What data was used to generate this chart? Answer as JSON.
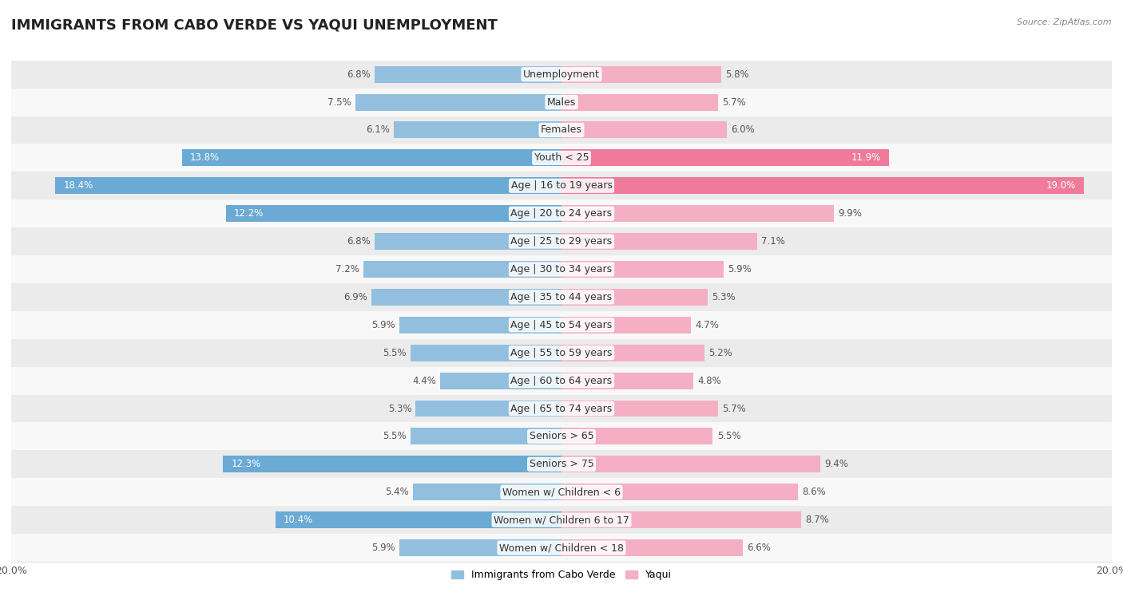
{
  "title": "IMMIGRANTS FROM CABO VERDE VS YAQUI UNEMPLOYMENT",
  "source": "Source: ZipAtlas.com",
  "categories": [
    "Unemployment",
    "Males",
    "Females",
    "Youth < 25",
    "Age | 16 to 19 years",
    "Age | 20 to 24 years",
    "Age | 25 to 29 years",
    "Age | 30 to 34 years",
    "Age | 35 to 44 years",
    "Age | 45 to 54 years",
    "Age | 55 to 59 years",
    "Age | 60 to 64 years",
    "Age | 65 to 74 years",
    "Seniors > 65",
    "Seniors > 75",
    "Women w/ Children < 6",
    "Women w/ Children 6 to 17",
    "Women w/ Children < 18"
  ],
  "cabo_verde": [
    6.8,
    7.5,
    6.1,
    13.8,
    18.4,
    12.2,
    6.8,
    7.2,
    6.9,
    5.9,
    5.5,
    4.4,
    5.3,
    5.5,
    12.3,
    5.4,
    10.4,
    5.9
  ],
  "yaqui": [
    5.8,
    5.7,
    6.0,
    11.9,
    19.0,
    9.9,
    7.1,
    5.9,
    5.3,
    4.7,
    5.2,
    4.8,
    5.7,
    5.5,
    9.4,
    8.6,
    8.7,
    6.6
  ],
  "cabo_verde_color": "#92bfde",
  "yaqui_color": "#f4afc5",
  "cabo_verde_highlight_color": "#6aaad4",
  "yaqui_highlight_color": "#f07a9a",
  "highlight_threshold": 10.0,
  "axis_max": 20.0,
  "legend_cabo_verde": "Immigrants from Cabo Verde",
  "legend_yaqui": "Yaqui",
  "row_bg_odd": "#ebebeb",
  "row_bg_even": "#f8f8f8",
  "bar_height": 0.6,
  "title_fontsize": 13,
  "label_fontsize": 9,
  "value_fontsize": 8.5
}
